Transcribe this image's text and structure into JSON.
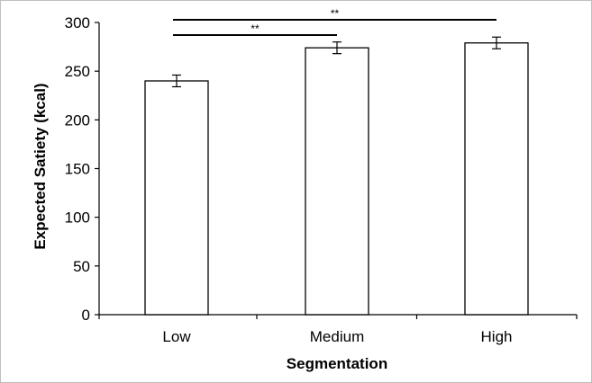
{
  "chart_data": {
    "type": "bar",
    "title": "",
    "xlabel": "Segmentation",
    "ylabel": "Expected Satiety (kcal)",
    "categories": [
      "Low",
      "Medium",
      "High"
    ],
    "values": [
      240,
      274,
      279
    ],
    "errors": [
      6,
      6,
      6
    ],
    "ylim": [
      0,
      300
    ],
    "yticks": [
      0,
      50,
      100,
      150,
      200,
      250,
      300
    ],
    "grid": false,
    "legend": "none",
    "bar_fill": "#ffffff",
    "bar_stroke": "#000000",
    "significance": [
      {
        "from": "Low",
        "to": "Medium",
        "label": "**"
      },
      {
        "from": "Low",
        "to": "High",
        "label": "**"
      }
    ]
  }
}
